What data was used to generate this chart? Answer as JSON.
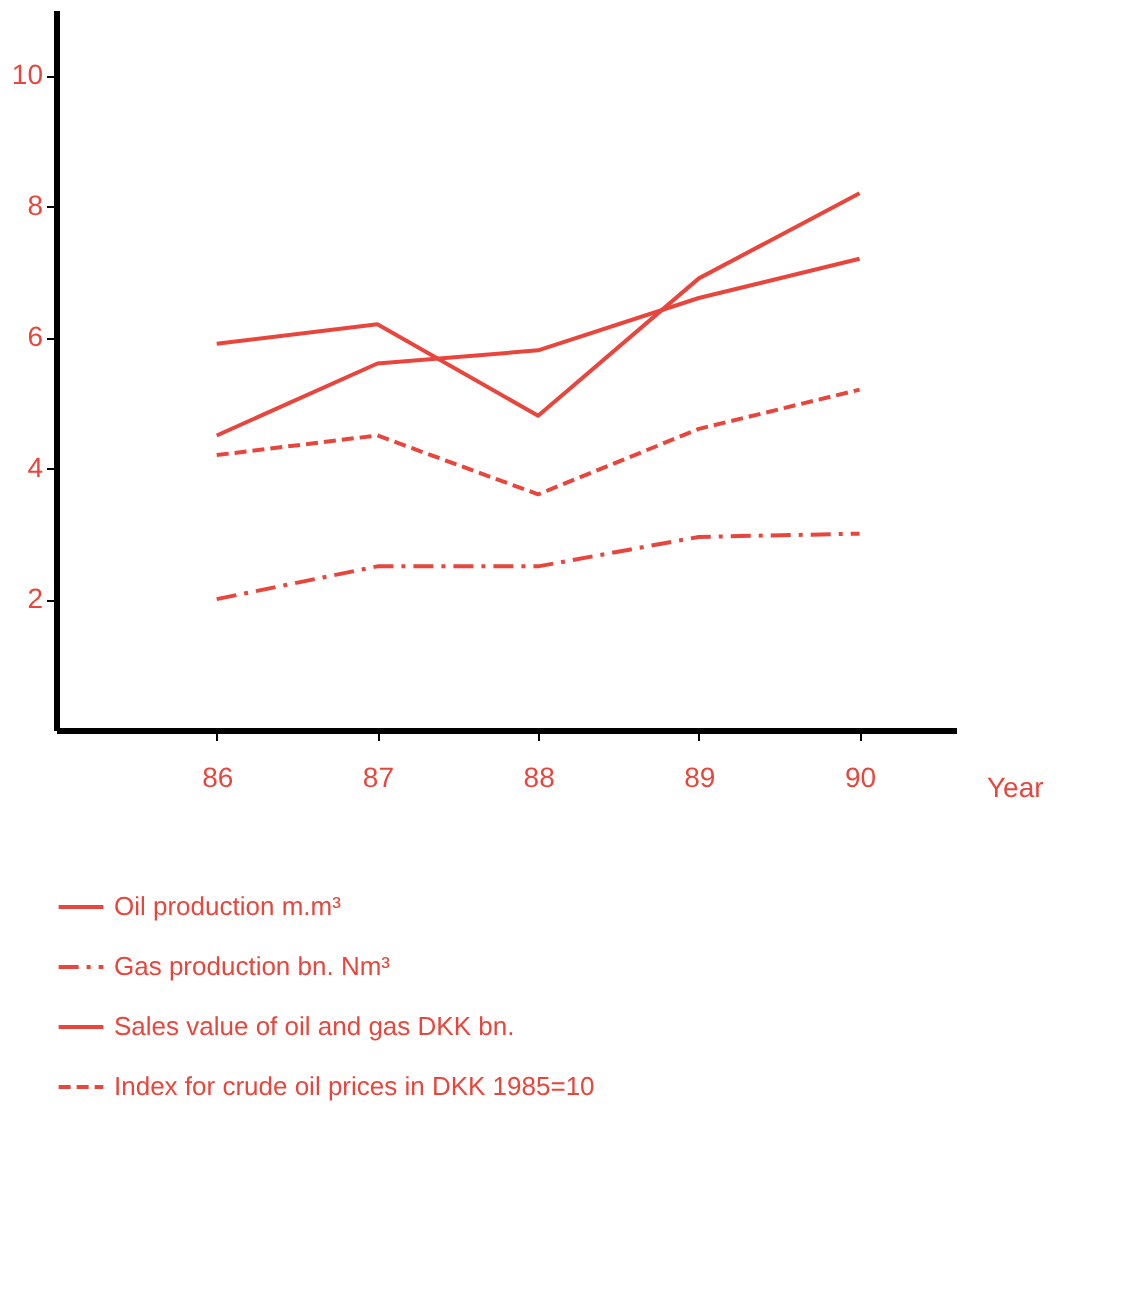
{
  "chart_data": {
    "type": "line",
    "xlabel": "Year",
    "x": [
      86,
      87,
      88,
      89,
      90
    ],
    "xlim": [
      85,
      90.6
    ],
    "xticks": [
      86,
      87,
      88,
      89,
      90
    ],
    "ylim": [
      0,
      11
    ],
    "yticks": [
      2,
      4,
      6,
      8,
      10
    ],
    "grid": false,
    "legend": "bottom",
    "marker": "none",
    "series": [
      {
        "name": "Oil production m.m³",
        "color": "#e8463c",
        "line_style": "solid",
        "values": [
          4.5,
          5.6,
          5.8,
          6.6,
          7.2
        ]
      },
      {
        "name": "Gas production bn. Nm³",
        "color": "#e8463c",
        "line_style": "dashdot",
        "values": [
          2.0,
          2.5,
          2.5,
          2.95,
          3.0
        ]
      },
      {
        "name": "Sales value of oil and gas DKK bn.",
        "color": "#e8463c",
        "line_style": "solid",
        "values": [
          5.9,
          6.2,
          4.8,
          6.9,
          8.2
        ]
      },
      {
        "name": "Index for crude oil prices in DKK 1985=10",
        "color": "#e8463c",
        "line_style": "dashed",
        "values": [
          4.2,
          4.5,
          3.6,
          4.6,
          5.2
        ]
      }
    ]
  }
}
